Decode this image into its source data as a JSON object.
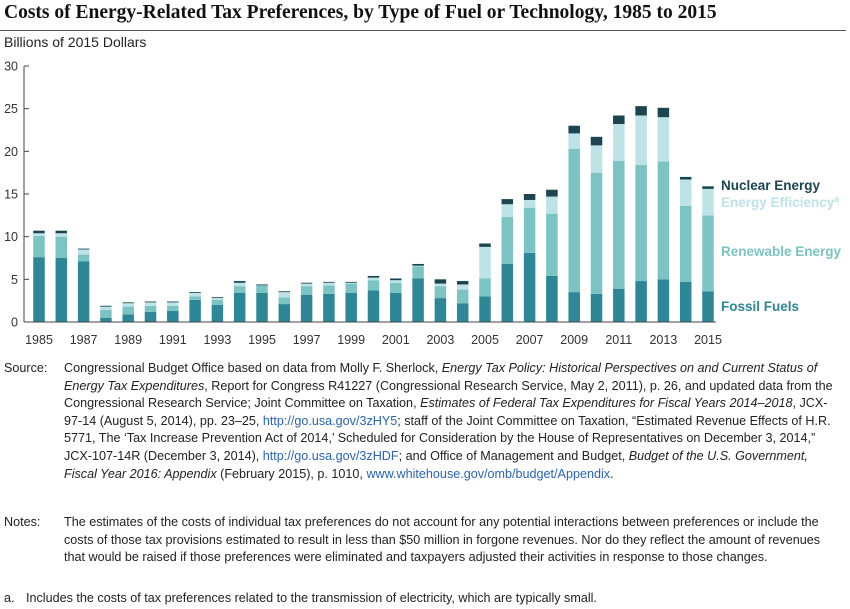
{
  "title": "Costs of Energy-Related Tax Preferences, by Type of Fuel or Technology, 1985 to 2015",
  "colors": {
    "fossil": "#2e8796",
    "renewable": "#7cc3c3",
    "efficiency": "#bde3e7",
    "nuclear": "#1b4550"
  },
  "chart_data": {
    "type": "bar",
    "stacked": true,
    "ylabel": "Billions of 2015 Dollars",
    "ylim": [
      0,
      30
    ],
    "yticks": [
      "0",
      "5",
      "10",
      "15",
      "20",
      "25",
      "30"
    ],
    "x_tick_labels": [
      "1985",
      "1987",
      "1989",
      "1991",
      "1993",
      "1995",
      "1997",
      "1999",
      "2001",
      "2003",
      "2005",
      "2007",
      "2009",
      "2011",
      "2013",
      "2015"
    ],
    "categories": [
      "1985",
      "1986",
      "1987",
      "1988",
      "1989",
      "1990",
      "1991",
      "1992",
      "1993",
      "1994",
      "1995",
      "1996",
      "1997",
      "1998",
      "1999",
      "2000",
      "2001",
      "2002",
      "2003",
      "2004",
      "2005",
      "2006",
      "2007",
      "2008",
      "2009",
      "2010",
      "2011",
      "2012",
      "2013",
      "2014",
      "2015"
    ],
    "legend_placement": "right, inline labels",
    "series": [
      {
        "name": "Fossil Fuels",
        "color_key": "fossil",
        "values": [
          7.6,
          7.5,
          7.1,
          0.5,
          0.9,
          1.2,
          1.3,
          2.6,
          2.0,
          3.4,
          3.4,
          2.1,
          3.2,
          3.3,
          3.4,
          3.7,
          3.4,
          5.1,
          2.8,
          2.2,
          3.0,
          6.8,
          8.1,
          5.4,
          3.5,
          3.3,
          3.9,
          4.8,
          5.0,
          4.7,
          3.6
        ]
      },
      {
        "name": "Renewable Energy",
        "color_key": "renewable",
        "values": [
          2.5,
          2.5,
          0.8,
          0.9,
          0.9,
          0.7,
          0.6,
          0.4,
          0.6,
          0.8,
          0.9,
          0.8,
          1.0,
          1.0,
          1.1,
          1.2,
          1.2,
          1.4,
          1.4,
          1.6,
          2.1,
          5.5,
          5.3,
          7.3,
          16.8,
          14.2,
          15.0,
          13.6,
          13.8,
          8.9,
          8.9
        ]
      },
      {
        "name": "Energy Efficiency",
        "superscript": "a",
        "color_key": "efficiency",
        "values": [
          0.3,
          0.4,
          0.6,
          0.4,
          0.4,
          0.4,
          0.4,
          0.4,
          0.2,
          0.4,
          0.0,
          0.6,
          0.3,
          0.3,
          0.1,
          0.3,
          0.3,
          0.1,
          0.3,
          0.6,
          3.7,
          1.5,
          0.9,
          2.0,
          1.8,
          3.2,
          4.3,
          5.8,
          5.2,
          3.1,
          3.1
        ]
      },
      {
        "name": "Nuclear Energy",
        "color_key": "nuclear",
        "values": [
          0.3,
          0.3,
          0.1,
          0.1,
          0.1,
          0.1,
          0.1,
          0.1,
          0.1,
          0.2,
          0.1,
          0.1,
          0.1,
          0.1,
          0.1,
          0.2,
          0.2,
          0.2,
          0.5,
          0.4,
          0.4,
          0.6,
          0.7,
          0.8,
          0.9,
          1.0,
          1.0,
          1.1,
          1.1,
          0.3,
          0.3
        ]
      }
    ]
  },
  "source": {
    "label": "Source:",
    "parts": [
      {
        "t": "Congressional Budget Office based on data from Molly F. Sherlock, "
      },
      {
        "t": "Energy Tax Policy: Historical Perspectives on and Current Status of Energy Tax Expenditures",
        "i": true
      },
      {
        "t": ", Report for Congress R41227 (Congressional Research Service, May 2, 2011), p. 26, and updated data from the Congressional Research Service; Joint Committee on Taxation, "
      },
      {
        "t": "Estimates of Federal Tax Expenditures for Fiscal Years 2014–2018",
        "i": true
      },
      {
        "t": ", JCX-97-14 (August 5, 2014), pp. 23–25, "
      },
      {
        "t": "http://go.usa.gov/3zHY5",
        "link": true
      },
      {
        "t": "; staff of the Joint Committee on Taxation, “Estimated Revenue Effects of H.R. 5771, The ‘Tax Increase Prevention Act of 2014,’ Scheduled for Consideration by the House of Representatives on December 3, 2014,” JCX-107-14R (December 3, 2014), "
      },
      {
        "t": "http://go.usa.gov/3zHDF",
        "link": true
      },
      {
        "t": "; and Office of Management and Budget, "
      },
      {
        "t": "Budget of the U.S. Government, Fiscal Year 2016: Appendix",
        "i": true
      },
      {
        "t": " (February 2015), p. 1010, "
      },
      {
        "t": "www.whitehouse.gov/omb/budget/Appendix",
        "link": true
      },
      {
        "t": "."
      }
    ]
  },
  "notes": {
    "label": "Notes:",
    "text": "The estimates of the costs of individual tax preferences do not account for any potential interactions between preferences or include the costs of those tax provisions estimated to result in less than $50 million in forgone revenues. Nor do they reflect the amount of revenues that would be raised if those preferences were eliminated and taxpayers adjusted their activities in response to those changes."
  },
  "footnote_a": {
    "label": "a.",
    "text": "Includes the costs of tax preferences related to the transmission of electricity, which are typically small."
  }
}
